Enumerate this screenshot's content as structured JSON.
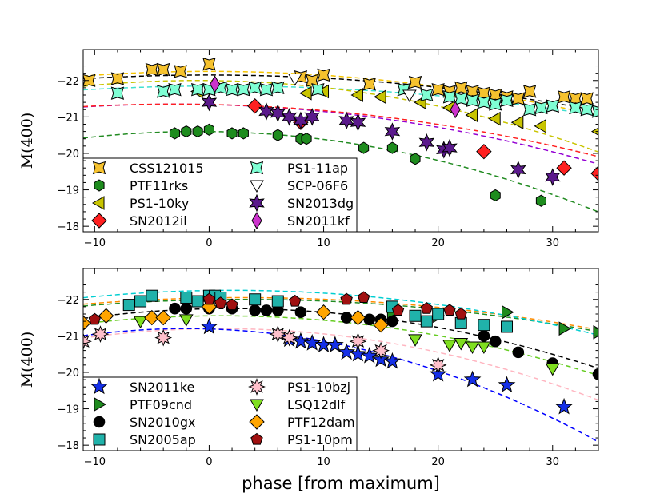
{
  "chart_data": [
    {
      "type": "scatter",
      "panel": "top",
      "ylabel": "M(400)",
      "xlabel": "",
      "xlim": [
        -11,
        34
      ],
      "ylim": [
        -17.85,
        -22.85
      ],
      "xticks": [
        -10,
        0,
        10,
        20,
        30
      ],
      "xtick_labels": [
        "−10",
        "0",
        "10",
        "20",
        "30"
      ],
      "yticks": [
        -18,
        -19,
        -20,
        -21,
        -22
      ],
      "ytick_labels": [
        "−18",
        "−19",
        "−20",
        "−21",
        "−22"
      ],
      "legend_location": "lower-left",
      "curves": [
        {
          "name": "CSS121015 fit",
          "color": "#f5c400",
          "style": "dashed",
          "peak": 0,
          "mpeak": -22.25,
          "k": 0.00105
        },
        {
          "name": "PS1-11ap fit",
          "color": "#40e0d0",
          "style": "dashed",
          "peak": 1,
          "mpeak": -21.85,
          "k": 0.00075
        },
        {
          "name": "PS1-10ky fit",
          "color": "#c8c400",
          "style": "dashed",
          "peak": -1,
          "mpeak": -22.0,
          "k": 0.0016
        },
        {
          "name": "SCP-06F6 fit",
          "color": "#000000",
          "style": "dashed",
          "peak": 0,
          "mpeak": -22.15,
          "k": 0.00085
        },
        {
          "name": "SN2013dg fit",
          "color": "#9400d3",
          "style": "dashed",
          "peak": -3,
          "mpeak": -21.35,
          "k": 0.0012
        },
        {
          "name": "SN2012il fit",
          "color": "#ff2020",
          "style": "dashed",
          "peak": -3,
          "mpeak": -21.35,
          "k": 0.00105
        },
        {
          "name": "PTF11rks fit",
          "color": "#228b22",
          "style": "dashed",
          "peak": -1,
          "mpeak": -20.6,
          "k": 0.0018
        }
      ],
      "series": [
        {
          "name": "CSS121015",
          "marker": "star4",
          "color": "#f6c22e",
          "x": [
            -10.5,
            -8,
            -5,
            -4,
            -2.5,
            0,
            8,
            9,
            10,
            14,
            18,
            20,
            21,
            22,
            23,
            24,
            25,
            26,
            27,
            28,
            30,
            31,
            32,
            33
          ],
          "y": [
            -22.0,
            -22.05,
            -22.3,
            -22.3,
            -22.25,
            -22.45,
            -22.1,
            -22.0,
            -22.15,
            -21.9,
            -21.95,
            -21.75,
            -21.7,
            -21.8,
            -21.7,
            -21.65,
            -21.6,
            -21.55,
            -21.5,
            -21.7,
            -21.3,
            -21.55,
            -21.5,
            -21.5
          ]
        },
        {
          "name": "PTF11rks",
          "marker": "hexagon",
          "color": "#1e8c1e",
          "x": [
            -3,
            -2,
            -1,
            0,
            2,
            3,
            6,
            8,
            8.5,
            13.5,
            16,
            18,
            25,
            29
          ],
          "y": [
            -20.55,
            -20.6,
            -20.6,
            -20.65,
            -20.55,
            -20.55,
            -20.5,
            -20.4,
            -20.4,
            -20.15,
            -20.15,
            -19.85,
            -18.85,
            -18.7
          ]
        },
        {
          "name": "PS1-10ky",
          "marker": "triangle-left",
          "color": "#c8c400",
          "x": [
            -1,
            8.5,
            10,
            13,
            15,
            18.5,
            21,
            23,
            25,
            27,
            29,
            34
          ],
          "y": [
            -21.7,
            -21.65,
            -21.7,
            -21.6,
            -21.55,
            -21.4,
            -21.25,
            -21.05,
            -20.95,
            -20.85,
            -20.75,
            -20.6
          ]
        },
        {
          "name": "SN2012il",
          "marker": "diamond",
          "color": "#ff2020",
          "x": [
            4,
            8,
            24,
            31,
            34
          ],
          "y": [
            -21.3,
            -20.85,
            -20.05,
            -19.6,
            -19.45
          ]
        },
        {
          "name": "PS1-11ap",
          "marker": "star4",
          "color": "#7fffd4",
          "x": [
            -8,
            -4,
            -3,
            -1,
            0,
            1,
            2,
            3,
            4,
            5,
            6,
            9.5,
            17,
            19,
            21,
            22,
            23,
            24,
            25,
            26,
            28,
            29,
            30,
            32,
            33,
            34
          ],
          "y": [
            -21.65,
            -21.7,
            -21.75,
            -21.75,
            -21.75,
            -21.8,
            -21.75,
            -21.75,
            -21.8,
            -21.75,
            -21.8,
            -21.75,
            -21.75,
            -21.6,
            -21.55,
            -21.5,
            -21.45,
            -21.4,
            -21.35,
            -21.45,
            -21.2,
            -21.25,
            -21.3,
            -21.25,
            -21.2,
            -21.15
          ]
        },
        {
          "name": "SCP-06F6",
          "marker": "triangle-down",
          "color": "#ffffff",
          "x": [
            7.5,
            17.5
          ],
          "y": [
            -22.05,
            -21.6
          ]
        },
        {
          "name": "SN2013dg",
          "marker": "star6",
          "color": "#5b1a8c",
          "x": [
            0,
            5,
            6,
            7,
            8,
            9,
            12,
            13,
            16,
            19,
            20.5,
            21,
            27,
            30
          ],
          "y": [
            -21.4,
            -21.15,
            -21.1,
            -21.0,
            -20.9,
            -21.0,
            -20.9,
            -20.85,
            -20.6,
            -20.3,
            -20.1,
            -20.15,
            -19.55,
            -19.35
          ]
        },
        {
          "name": "SN2011kf",
          "marker": "thin-diamond",
          "color": "#cc33cc",
          "x": [
            0.5,
            21.5
          ],
          "y": [
            -21.9,
            -21.2
          ]
        }
      ]
    },
    {
      "type": "scatter",
      "panel": "bottom",
      "ylabel": "M(400)",
      "xlabel": "phase [from maximum]",
      "xlim": [
        -11,
        34
      ],
      "ylim": [
        -17.85,
        -22.85
      ],
      "xticks": [
        -10,
        0,
        10,
        20,
        30
      ],
      "xtick_labels": [
        "−10",
        "0",
        "10",
        "20",
        "30"
      ],
      "yticks": [
        -18,
        -19,
        -20,
        -21,
        -22
      ],
      "ytick_labels": [
        "−18",
        "−19",
        "−20",
        "−21",
        "−22"
      ],
      "legend_location": "lower-left",
      "curves": [
        {
          "name": "PTF12dam fit",
          "color": "#ff8c00",
          "style": "dashed",
          "peak": 3,
          "mpeak": -22.05,
          "k": 0.00092
        },
        {
          "name": "PTF09cnd fit",
          "color": "#228b22",
          "style": "dashed",
          "peak": 3,
          "mpeak": -22.0,
          "k": 0.00092
        },
        {
          "name": "SN2005ap fit",
          "color": "#00ced1",
          "style": "dashed",
          "peak": 2,
          "mpeak": -22.25,
          "k": 0.0012
        },
        {
          "name": "SN2010gx fit",
          "color": "#000000",
          "style": "dashed",
          "peak": 2,
          "mpeak": -21.75,
          "k": 0.0016
        },
        {
          "name": "LSQ12dlf fit",
          "color": "#66cc22",
          "style": "dashed",
          "peak": 1,
          "mpeak": -21.55,
          "k": 0.0015
        },
        {
          "name": "PS1-10bzj fit",
          "color": "#ffb6c1",
          "style": "dashed",
          "peak": 1,
          "mpeak": -21.2,
          "k": 0.0018
        },
        {
          "name": "SN2011ke fit",
          "color": "#0000ff",
          "style": "dashed",
          "peak": -2,
          "mpeak": -21.2,
          "k": 0.0024
        }
      ],
      "series": [
        {
          "name": "SN2011ke",
          "marker": "star5",
          "color": "#1530e8",
          "x": [
            0,
            7,
            8,
            9,
            10,
            11,
            12,
            13,
            14,
            15,
            16,
            20,
            23,
            26,
            31
          ],
          "y": [
            -21.25,
            -20.9,
            -20.85,
            -20.8,
            -20.75,
            -20.75,
            -20.55,
            -20.5,
            -20.45,
            -20.35,
            -20.3,
            -19.95,
            -19.8,
            -19.65,
            -19.05
          ]
        },
        {
          "name": "PTF09cnd",
          "marker": "triangle-right",
          "color": "#1e8c1e",
          "x": [
            16,
            20,
            26,
            31,
            34
          ],
          "y": [
            -21.65,
            -21.55,
            -21.65,
            -21.2,
            -21.1
          ]
        },
        {
          "name": "SN2010gx",
          "marker": "circle",
          "color": "#000000",
          "x": [
            -3,
            -2,
            0,
            2,
            4,
            5,
            6,
            8,
            12,
            13,
            14,
            15,
            16,
            24,
            25,
            27,
            30,
            34
          ],
          "y": [
            -21.75,
            -21.75,
            -21.75,
            -21.75,
            -21.7,
            -21.7,
            -21.7,
            -21.65,
            -21.5,
            -21.5,
            -21.45,
            -21.45,
            -21.4,
            -21.0,
            -20.85,
            -20.55,
            -20.25,
            -19.95
          ]
        },
        {
          "name": "SN2005ap",
          "marker": "square",
          "color": "#20b2aa",
          "x": [
            -7,
            -6,
            -5,
            -2,
            -1,
            0,
            0.5,
            1,
            4,
            6,
            16,
            18,
            19,
            20,
            22,
            24,
            26
          ],
          "y": [
            -21.85,
            -21.95,
            -22.1,
            -22.05,
            -21.95,
            -22.1,
            -22.1,
            -22.05,
            -22.0,
            -21.95,
            -21.8,
            -21.55,
            -21.4,
            -21.6,
            -21.35,
            -21.3,
            -21.25
          ]
        },
        {
          "name": "PS1-10bzj",
          "marker": "star8",
          "color": "#ffc0cb",
          "x": [
            -11,
            -9.5,
            -4,
            6,
            7,
            13,
            15,
            20
          ],
          "y": [
            -20.85,
            -21.05,
            -20.95,
            -21.05,
            -20.95,
            -20.85,
            -20.6,
            -20.2
          ]
        },
        {
          "name": "LSQ12dlf",
          "marker": "triangle-down",
          "color": "#7fdf1f",
          "x": [
            -6,
            -2,
            18,
            21,
            22,
            23,
            24,
            30
          ],
          "y": [
            -21.4,
            -21.45,
            -20.9,
            -20.75,
            -20.8,
            -20.7,
            -20.7,
            -20.1
          ]
        },
        {
          "name": "PTF12dam",
          "marker": "diamond",
          "color": "#ffa500",
          "x": [
            -11,
            -9,
            -5,
            -4,
            0,
            10,
            13,
            15
          ],
          "y": [
            -21.35,
            -21.55,
            -21.5,
            -21.5,
            -21.8,
            -21.65,
            -21.5,
            -21.3
          ]
        },
        {
          "name": "PS1-10pm",
          "marker": "pentagon",
          "color": "#a01010",
          "x": [
            -10,
            0,
            1,
            2,
            7.5,
            12,
            13.5,
            16.5,
            19,
            21,
            22
          ],
          "y": [
            -21.45,
            -22.0,
            -21.9,
            -21.85,
            -21.95,
            -22.0,
            -22.05,
            -21.7,
            -21.75,
            -21.7,
            -21.6
          ]
        }
      ]
    }
  ]
}
